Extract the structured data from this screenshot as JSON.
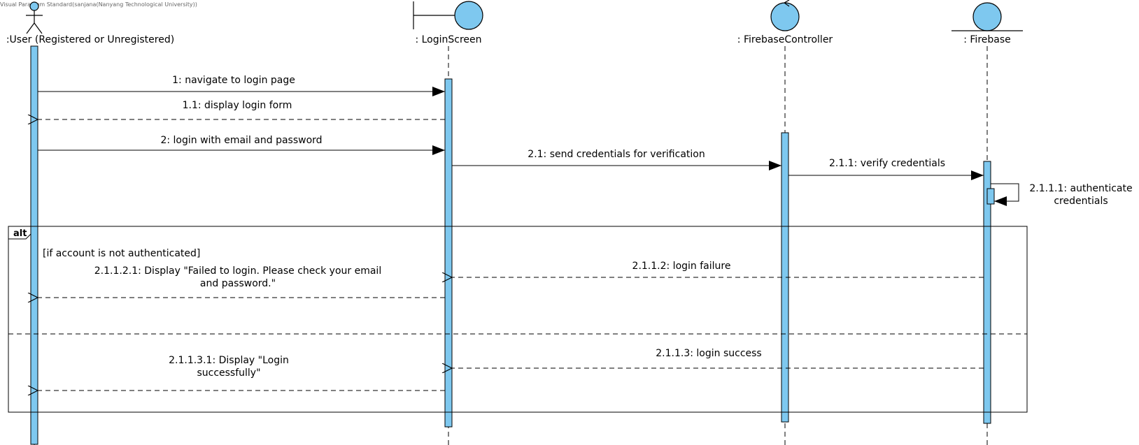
{
  "watermark": "Visual Paradigm Standard(sanjana(Nanyang Technological University))",
  "colors": {
    "activation": "#7ec8ef",
    "line": "#000000",
    "frame": "#000000"
  },
  "lifelines": [
    {
      "id": "user",
      "name": ":User (Registered or Unregistered)",
      "kind": "actor-icon"
    },
    {
      "id": "login",
      "name": ": LoginScreen",
      "kind": "boundary-icon"
    },
    {
      "id": "fc",
      "name": ": FirebaseController",
      "kind": "control-icon"
    },
    {
      "id": "fb",
      "name": ": Firebase",
      "kind": "entity-icon"
    }
  ],
  "messages": [
    {
      "id": "m1",
      "text": "1: navigate to login page",
      "type": "sync",
      "from": "user",
      "to": "login"
    },
    {
      "id": "m11",
      "text": "1.1: display login form",
      "type": "return",
      "from": "login",
      "to": "user"
    },
    {
      "id": "m2",
      "text": "2: login with email and password",
      "type": "sync",
      "from": "user",
      "to": "login"
    },
    {
      "id": "m21",
      "text": "2.1: send credentials for verification",
      "type": "sync",
      "from": "login",
      "to": "fc"
    },
    {
      "id": "m211",
      "text": "2.1.1: verify credentials",
      "type": "sync",
      "from": "fc",
      "to": "fb"
    },
    {
      "id": "m2111",
      "lines": [
        "2.1.1.1: authenticate",
        "credentials"
      ],
      "type": "self",
      "from": "fb",
      "to": "fb"
    },
    {
      "id": "m2112",
      "text": "2.1.1.2: login failure",
      "type": "return",
      "from": "fb",
      "to": "login"
    },
    {
      "id": "m21121",
      "lines": [
        "2.1.1.2.1: Display \"Failed to login. Please check your email",
        "and password.\""
      ],
      "type": "return",
      "from": "login",
      "to": "user"
    },
    {
      "id": "m2113",
      "text": "2.1.1.3: login success",
      "type": "return",
      "from": "fb",
      "to": "login"
    },
    {
      "id": "m21131",
      "lines": [
        "2.1.1.3.1: Display \"Login",
        "successfully\""
      ],
      "type": "return",
      "from": "login",
      "to": "user"
    }
  ],
  "fragment": {
    "operator": "alt",
    "guard": "[if account is not authenticated]"
  }
}
